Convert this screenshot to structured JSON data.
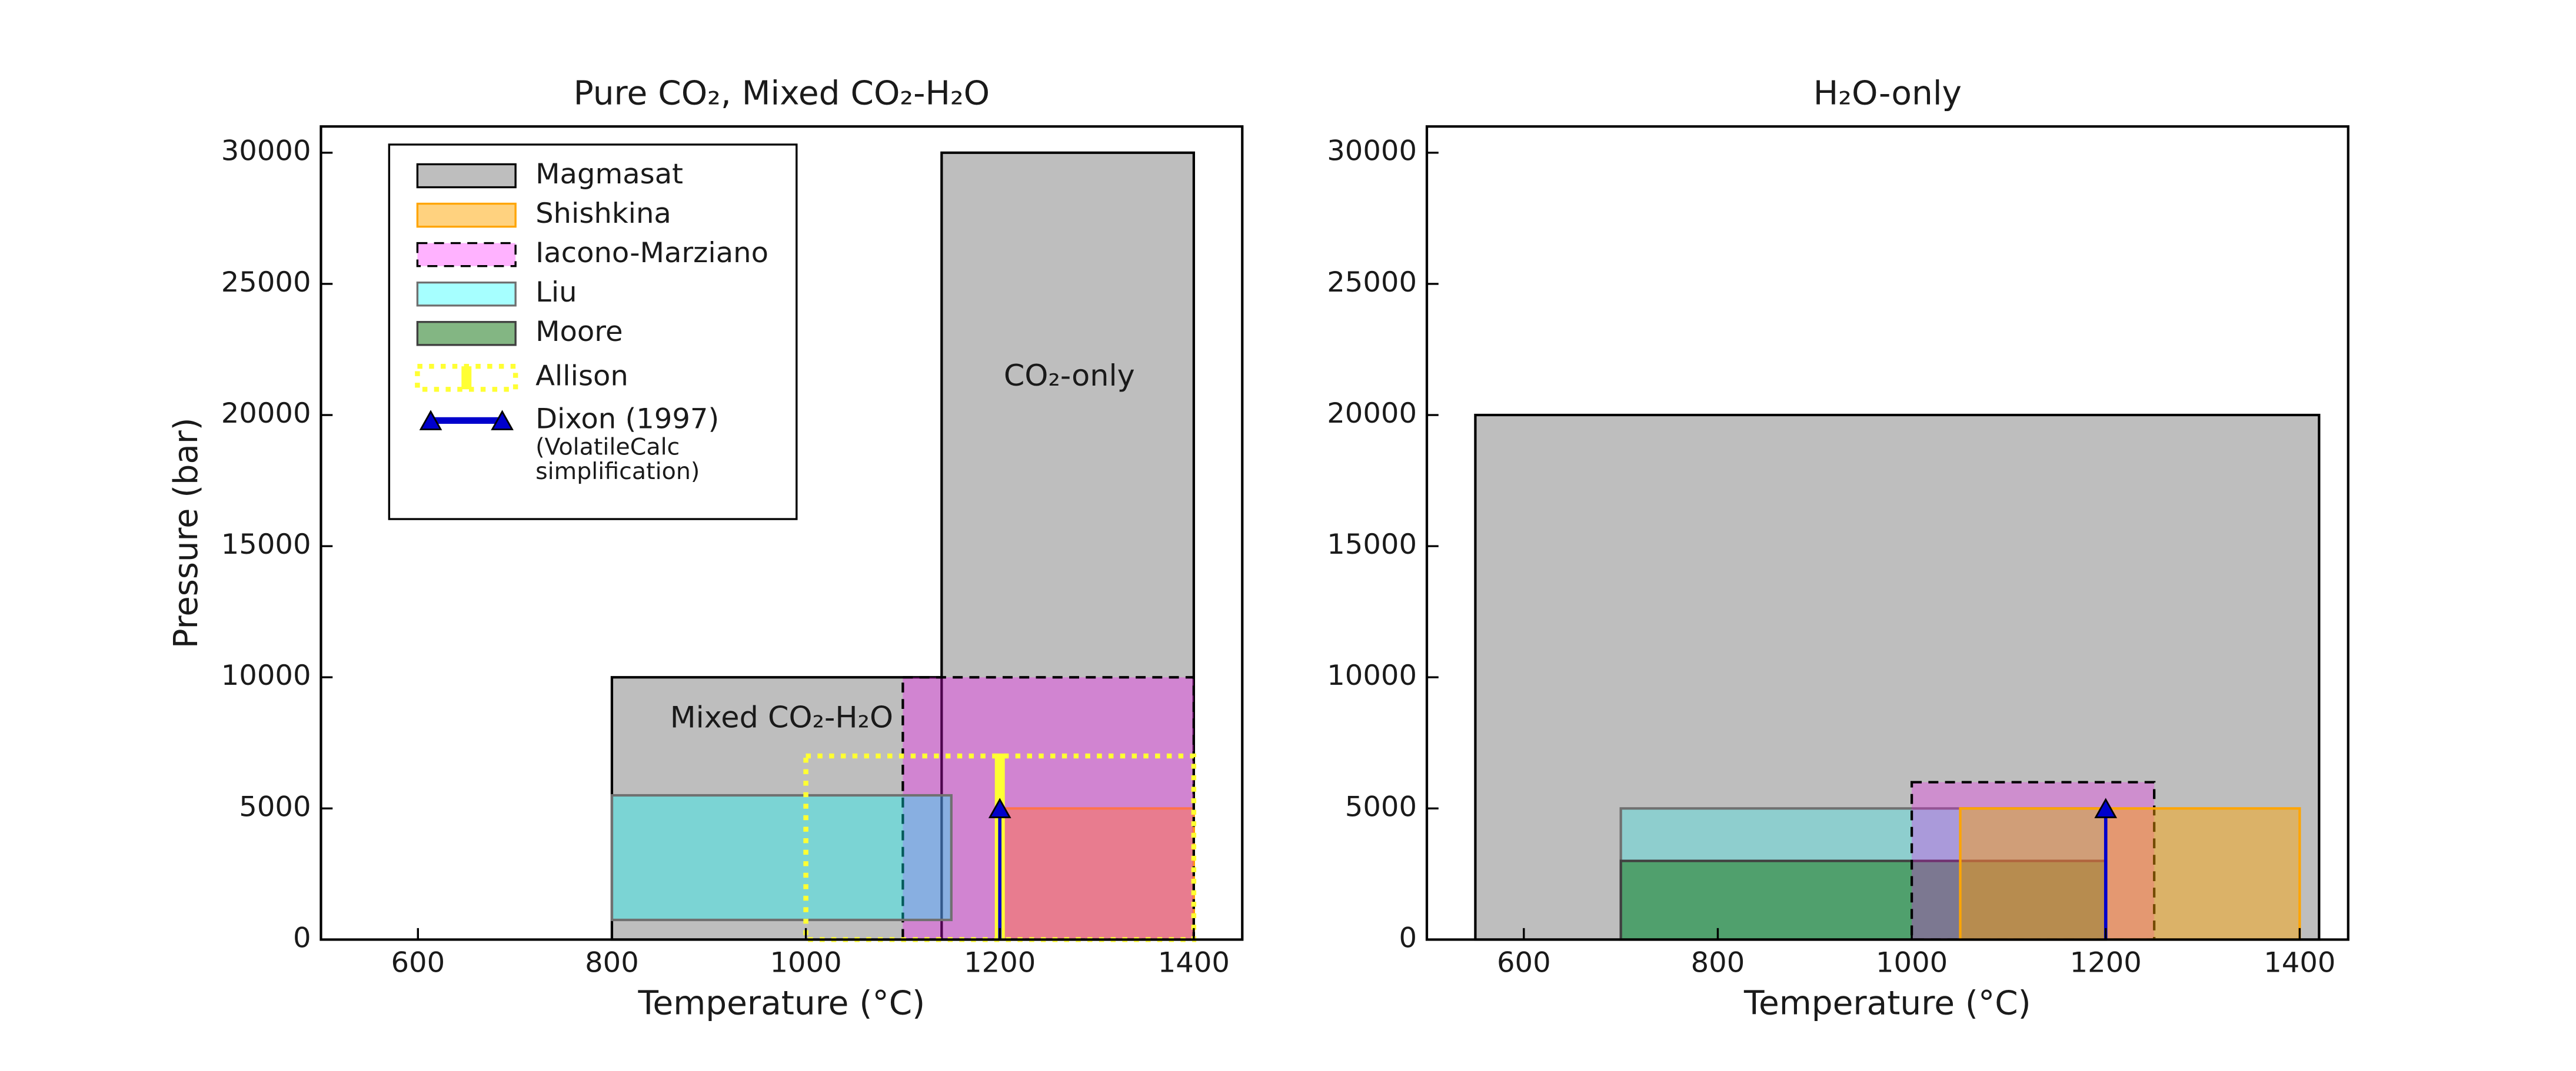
{
  "chart_data": [
    {
      "type": "range-box",
      "title": "Pure CO₂, Mixed CO₂-H₂O",
      "xlabel": "Temperature (°C)",
      "ylabel": "Pressure (bar)",
      "xlim": [
        500,
        1450
      ],
      "ylim": [
        0,
        31000
      ],
      "xticks": [
        600,
        800,
        1000,
        1200,
        1400
      ],
      "yticks": [
        0,
        5000,
        10000,
        15000,
        20000,
        25000,
        30000
      ],
      "legend": "upper left",
      "annotations": [
        "CO₂-only",
        "Mixed CO₂-H₂O"
      ],
      "series": [
        {
          "name": "Magmasat",
          "color": "#bebebe",
          "edgecolor": "#000000",
          "alpha": 1,
          "linestyle": "solid",
          "boxes": [
            {
              "x": [
                800,
                1400
              ],
              "y": [
                0,
                10000
              ]
            },
            {
              "x": [
                1140,
                1400
              ],
              "y": [
                0,
                30000
              ]
            }
          ]
        },
        {
          "name": "Shishkina",
          "color": "#ffa500",
          "edgecolor": "#ffa500",
          "alpha": 0.5,
          "linestyle": "solid",
          "boxes": [
            {
              "x": [
                1200,
                1400
              ],
              "y": [
                0,
                5000
              ]
            }
          ]
        },
        {
          "name": "Iacono-Marziano",
          "color": "#ff00ff",
          "edgecolor": "#000000",
          "alpha": 0.3,
          "linestyle": "dashed",
          "boxes": [
            {
              "x": [
                1100,
                1400
              ],
              "y": [
                0,
                10000
              ]
            }
          ]
        },
        {
          "name": "Liu",
          "color": "#00ffff",
          "edgecolor": "#707070",
          "alpha": 0.35,
          "linestyle": "solid",
          "boxes": [
            {
              "x": [
                800,
                1150
              ],
              "y": [
                750,
                5500
              ]
            }
          ]
        },
        {
          "name": "Moore",
          "color": "#1e7a1e",
          "edgecolor": "#404040",
          "alpha": 0.55,
          "linestyle": "solid",
          "boxes": []
        },
        {
          "name": "Allison",
          "color": "#ffff33",
          "edgecolor": "#ffff33",
          "alpha": 0,
          "linestyle": "dotted",
          "boxes": [
            {
              "x": [
                1000,
                1400
              ],
              "y": [
                0,
                7000
              ]
            }
          ],
          "errorbar": {
            "x": 1200,
            "y": [
              0,
              7000
            ]
          }
        },
        {
          "name": "Dixon (1997)",
          "note": [
            "(VolatileCalc",
            "simplification)"
          ],
          "color": "#0000cc",
          "edgecolor": "#000000",
          "alpha": 1,
          "linestyle": "solid",
          "boxes": [],
          "arrow": {
            "x": 1200,
            "y": [
              0,
              5000
            ]
          }
        }
      ]
    },
    {
      "type": "range-box",
      "title": "H₂O-only",
      "xlabel": "Temperature (°C)",
      "xlim": [
        500,
        1450
      ],
      "ylim": [
        0,
        31000
      ],
      "xticks": [
        600,
        800,
        1000,
        1200,
        1400
      ],
      "yticks": [
        0,
        5000,
        10000,
        15000,
        20000,
        25000,
        30000
      ],
      "series": [
        {
          "name": "Magmasat",
          "color": "#bebebe",
          "edgecolor": "#000000",
          "alpha": 1,
          "linestyle": "solid",
          "boxes": [
            {
              "x": [
                550,
                1420
              ],
              "y": [
                0,
                20000
              ]
            }
          ]
        },
        {
          "name": "Liu",
          "color": "#00ffff",
          "edgecolor": "#707070",
          "alpha": 0.25,
          "linestyle": "solid",
          "boxes": [
            {
              "x": [
                700,
                1200
              ],
              "y": [
                0,
                5000
              ]
            }
          ]
        },
        {
          "name": "Moore",
          "color": "#1e7a1e",
          "edgecolor": "#404040",
          "alpha": 0.55,
          "linestyle": "solid",
          "boxes": [
            {
              "x": [
                700,
                1200
              ],
              "y": [
                0,
                3000
              ]
            }
          ]
        },
        {
          "name": "Iacono-Marziano",
          "color": "#ff00ff",
          "edgecolor": "#000000",
          "alpha": 0.25,
          "linestyle": "dashed",
          "boxes": [
            {
              "x": [
                1000,
                1250
              ],
              "y": [
                0,
                6000
              ]
            }
          ]
        },
        {
          "name": "Shishkina",
          "color": "#ffa500",
          "edgecolor": "#ffa500",
          "alpha": 0.45,
          "linestyle": "solid",
          "boxes": [
            {
              "x": [
                1050,
                1400
              ],
              "y": [
                0,
                5000
              ]
            }
          ]
        },
        {
          "name": "Dixon (1997)",
          "color": "#0000cc",
          "edgecolor": "#000000",
          "alpha": 1,
          "linestyle": "solid",
          "boxes": [],
          "arrow": {
            "x": 1200,
            "y": [
              0,
              5000
            ]
          }
        }
      ]
    }
  ]
}
